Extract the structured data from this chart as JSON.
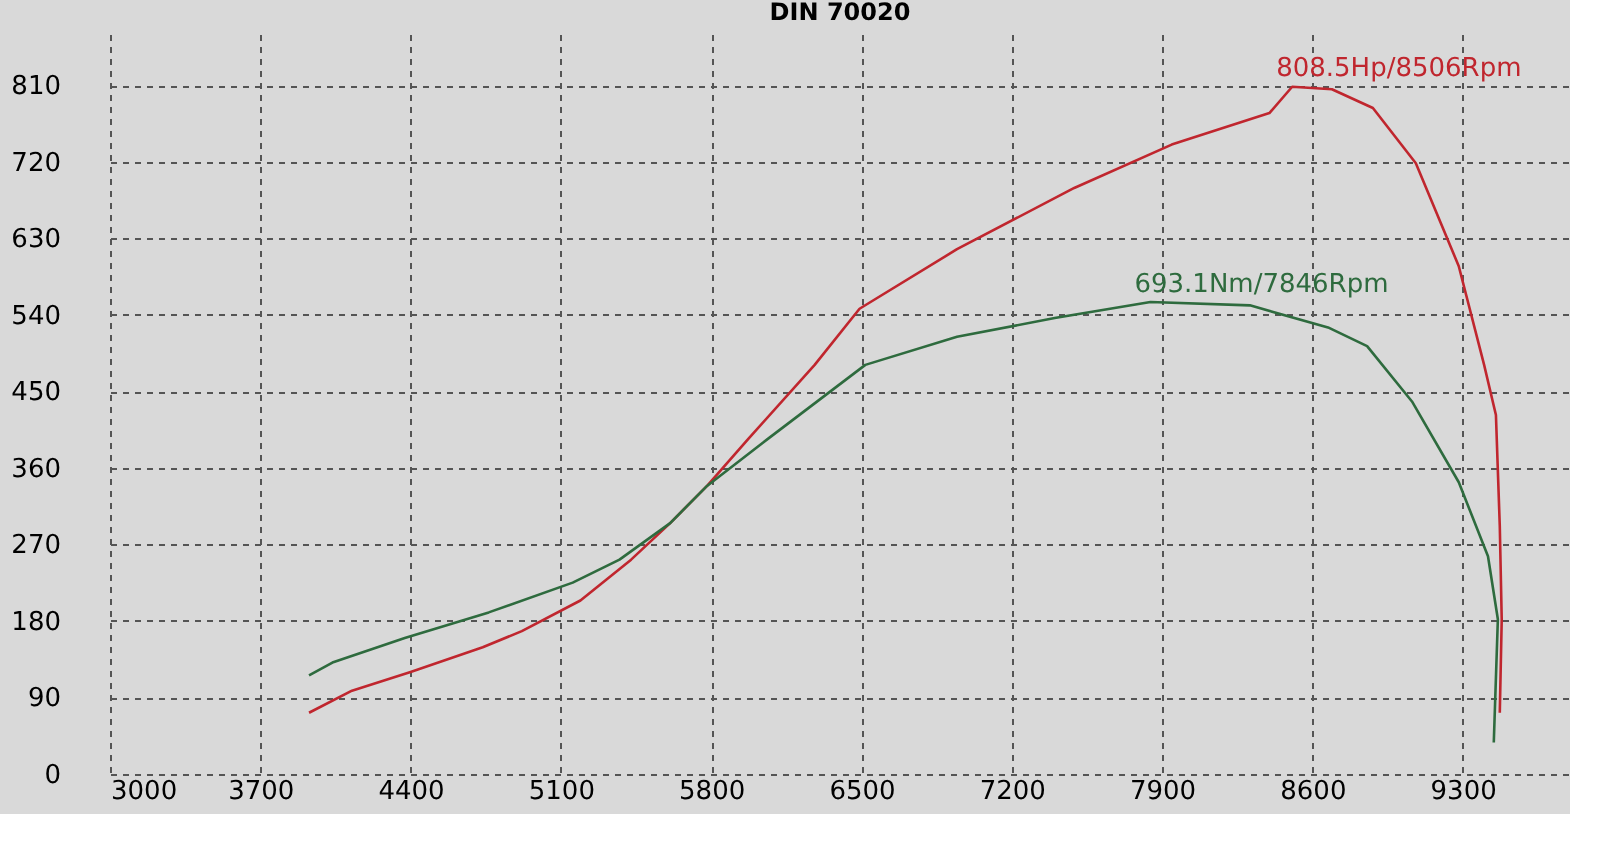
{
  "chart_data": {
    "type": "line",
    "title": "DIN 70020",
    "xlim": [
      3000,
      9800
    ],
    "xticks": [
      3000,
      3700,
      4400,
      5100,
      5800,
      6500,
      7200,
      7900,
      8600,
      9300
    ],
    "ylim": [
      0,
      870
    ],
    "yticks": [
      0,
      90,
      180,
      270,
      360,
      450,
      540,
      630,
      720,
      810
    ],
    "grid": true,
    "line_style": "solid",
    "marker": "none",
    "series": [
      {
        "color": "#c0262e",
        "x": [
          3927,
          4127,
          4400,
          4736,
          4918,
          5191,
          5427,
          5609,
          5782,
          5973,
          6282,
          6491,
          6945,
          7491,
          7945,
          8400,
          8506,
          8691,
          8882,
          9082,
          9282,
          9400,
          9455,
          9473,
          9482,
          9473
        ],
        "values": [
          72,
          98,
          120,
          149,
          168,
          204,
          252,
          295,
          339,
          394,
          481,
          547,
          617,
          689,
          740,
          777,
          808,
          805,
          783,
          718,
          597,
          481,
          422,
          291,
          182,
          72
        ]
      },
      {
        "color": "#2e6b3e",
        "x": [
          3927,
          4036,
          4373,
          4764,
          5155,
          5373,
          5609,
          5782,
          6064,
          6518,
          6945,
          7400,
          7846,
          8309,
          8673,
          8855,
          9064,
          9282,
          9418,
          9464,
          9445
        ],
        "values": [
          116,
          131,
          160,
          190,
          225,
          252,
          295,
          339,
          394,
          481,
          514,
          536,
          555,
          551,
          525,
          503,
          438,
          343,
          256,
          182,
          37
        ]
      }
    ],
    "annotations": [
      {
        "text": "808.5Hp/8506Rpm",
        "x": 8506,
        "y": 808.5
      },
      {
        "text": "693.1Nm/7846Rpm",
        "x": 7846,
        "y": 555
      }
    ]
  }
}
